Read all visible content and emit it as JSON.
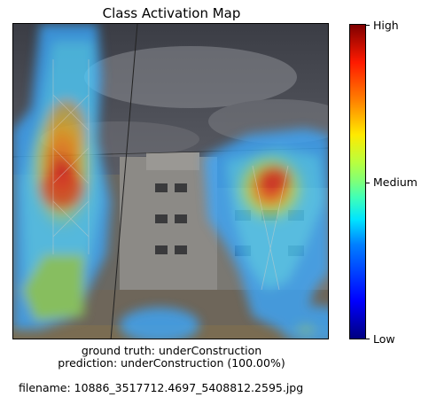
{
  "chart_data": {
    "type": "heatmap",
    "title": "Class Activation Map",
    "colorbar": {
      "colormap": "jet",
      "tick_labels": [
        "High",
        "Medium",
        "Low"
      ]
    },
    "captions": {
      "ground_truth": "ground truth: underConstruction",
      "prediction": "prediction: underConstruction (100.00%)",
      "filename": "filename: 10886_3517712.4697_5408812.2595.jpg"
    }
  }
}
